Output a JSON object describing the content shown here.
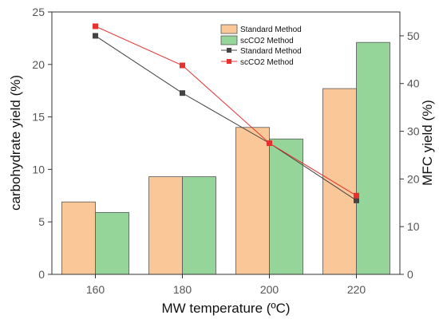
{
  "chart_data": {
    "type": "bar",
    "title": "",
    "xlabel": "MW temperature (ºC)",
    "categories": [
      "160",
      "180",
      "200",
      "220"
    ],
    "bar_series": [
      {
        "name": "Standard Method",
        "values": [
          6.9,
          9.3,
          14.0,
          17.7
        ],
        "color": "#fac898"
      },
      {
        "name": "scCO2 Method",
        "values": [
          5.9,
          9.3,
          12.9,
          22.1
        ],
        "color": "#96d59a"
      }
    ],
    "line_series": [
      {
        "name": "Standard Method",
        "values": [
          50.0,
          38.0,
          27.5,
          15.5
        ],
        "color": "#444444"
      },
      {
        "name": "scCO2 Method",
        "values": [
          52.0,
          43.8,
          27.5,
          16.5
        ],
        "color": "#e8312f"
      }
    ],
    "y_left": {
      "label": "carbohydrate yield (%)",
      "ylim": [
        0,
        25
      ],
      "ticks": [
        "0",
        "5",
        "10",
        "15",
        "20",
        "25"
      ]
    },
    "y_right": {
      "label": "MFC yield (%)",
      "ylim": [
        0,
        55
      ],
      "ticks": [
        "0",
        "10",
        "20",
        "30",
        "40",
        "50"
      ]
    },
    "legend_position": "top-right",
    "grid": false
  }
}
